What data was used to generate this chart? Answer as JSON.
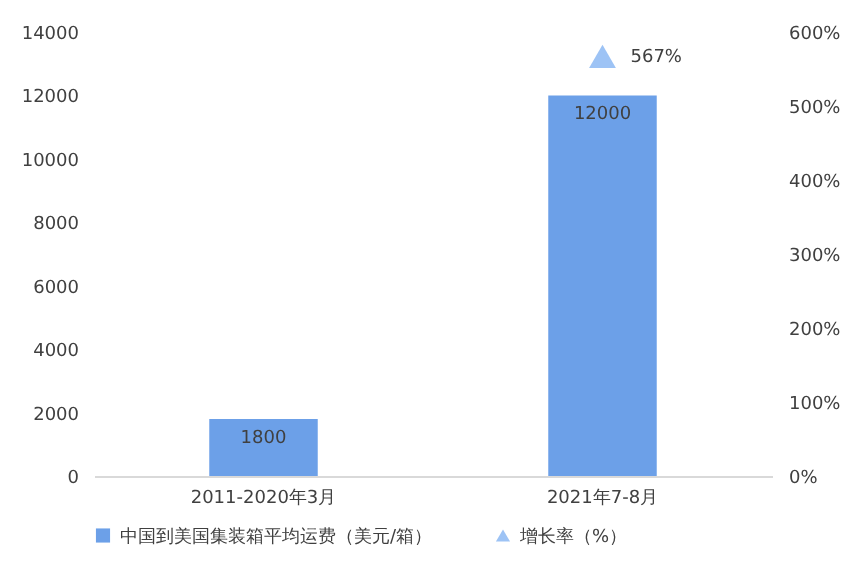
{
  "chart_data": {
    "type": "bar",
    "categories": [
      "2011-2020年3月",
      "2021年7-8月"
    ],
    "series": [
      {
        "name": "中国到美国集装箱平均运费（美元/箱）",
        "color": "#6ca0e8",
        "values": [
          1800,
          12000
        ]
      },
      {
        "name": "增长率（%）",
        "type": "scatter",
        "axis": "y2",
        "marker": "triangle",
        "color": "#9dc3f5",
        "values": [
          null,
          567
        ],
        "value_labels": [
          null,
          "567%"
        ]
      }
    ],
    "data_labels": true,
    "ylim": [
      0,
      14000
    ],
    "yticks": [
      0,
      2000,
      4000,
      6000,
      8000,
      10000,
      12000,
      14000
    ],
    "y2lim": [
      0,
      600
    ],
    "y2ticks": [
      {
        "value": 0,
        "label": "0%"
      },
      {
        "value": 100,
        "label": "100%"
      },
      {
        "value": 200,
        "label": "200%"
      },
      {
        "value": 300,
        "label": "300%"
      },
      {
        "value": 400,
        "label": "400%"
      },
      {
        "value": 500,
        "label": "500%"
      },
      {
        "value": 600,
        "label": "600%"
      }
    ],
    "grid": false,
    "legend": "bottom"
  }
}
